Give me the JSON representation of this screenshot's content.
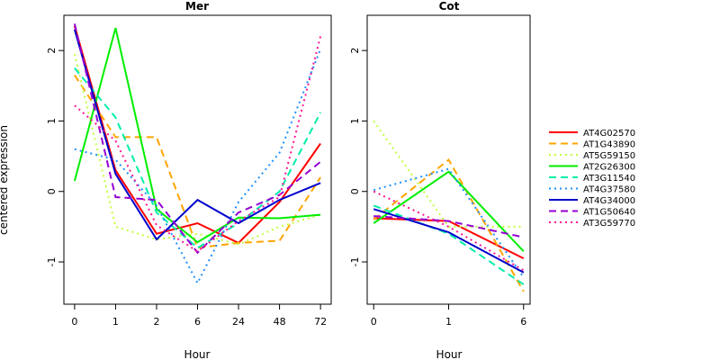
{
  "figure": {
    "ylabel": "centered expression",
    "legend_position": "right"
  },
  "chart_data": [
    {
      "type": "line",
      "title": "Mer",
      "xlabel": "Hour",
      "ylabel": "centered expression",
      "categories": [
        "0",
        "1",
        "2",
        "6",
        "24",
        "48",
        "72"
      ],
      "ylim": [
        -1.6,
        2.5
      ],
      "yticks": [
        -1,
        0,
        1,
        2
      ],
      "grid": false,
      "series": [
        {
          "name": "AT4G02570",
          "color": "#ff0000",
          "dash": "solid",
          "values": [
            2.35,
            0.3,
            -0.6,
            -0.45,
            -0.73,
            -0.15,
            0.68
          ]
        },
        {
          "name": "AT1G43890",
          "color": "#ffa500",
          "dash": "dashed",
          "values": [
            1.65,
            0.77,
            0.77,
            -0.8,
            -0.73,
            -0.7,
            0.2
          ]
        },
        {
          "name": "AT5G59150",
          "color": "#c0ff3e",
          "dash": "dotted",
          "values": [
            1.95,
            -0.5,
            -0.68,
            -0.6,
            -0.75,
            -0.5,
            -0.33
          ]
        },
        {
          "name": "AT2G26300",
          "color": "#00ee00",
          "dash": "solid",
          "values": [
            0.15,
            2.32,
            -0.25,
            -0.72,
            -0.37,
            -0.38,
            -0.33
          ]
        },
        {
          "name": "AT3G11540",
          "color": "#00eeaa",
          "dash": "dashed",
          "values": [
            1.75,
            1.05,
            -0.3,
            -0.8,
            -0.45,
            0.0,
            1.12
          ]
        },
        {
          "name": "AT4G37580",
          "color": "#1e90ff",
          "dash": "dotted",
          "values": [
            0.6,
            0.45,
            -0.2,
            -1.3,
            -0.15,
            0.55,
            2.02
          ]
        },
        {
          "name": "AT4G34000",
          "color": "#0000cd",
          "dash": "solid",
          "values": [
            2.3,
            0.25,
            -0.68,
            -0.12,
            -0.45,
            -0.12,
            0.12
          ]
        },
        {
          "name": "AT1G50640",
          "color": "#9400d3",
          "dash": "dashed",
          "values": [
            2.38,
            -0.08,
            -0.12,
            -0.87,
            -0.3,
            -0.05,
            0.42
          ]
        },
        {
          "name": "AT3G59770",
          "color": "#ff1493",
          "dash": "dotted",
          "values": [
            1.22,
            0.72,
            -0.48,
            -0.85,
            -0.42,
            -0.08,
            2.2
          ]
        }
      ]
    },
    {
      "type": "line",
      "title": "Cot",
      "xlabel": "Hour",
      "ylabel": "",
      "categories": [
        "0",
        "1",
        "6"
      ],
      "ylim": [
        -1.6,
        2.5
      ],
      "yticks": [
        -1,
        0,
        1,
        2
      ],
      "grid": false,
      "series": [
        {
          "name": "AT4G02570",
          "color": "#ff0000",
          "dash": "solid",
          "values": [
            -0.38,
            -0.42,
            -0.95
          ]
        },
        {
          "name": "AT1G43890",
          "color": "#ffa500",
          "dash": "dashed",
          "values": [
            -0.4,
            0.45,
            -1.42
          ]
        },
        {
          "name": "AT5G59150",
          "color": "#c0ff3e",
          "dash": "dotted",
          "values": [
            1.0,
            -0.5,
            -0.5
          ]
        },
        {
          "name": "AT2G26300",
          "color": "#00ee00",
          "dash": "solid",
          "values": [
            -0.45,
            0.28,
            -0.85
          ]
        },
        {
          "name": "AT3G11540",
          "color": "#00eeaa",
          "dash": "dashed",
          "values": [
            -0.2,
            -0.6,
            -1.32
          ]
        },
        {
          "name": "AT4G37580",
          "color": "#1e90ff",
          "dash": "dotted",
          "values": [
            0.02,
            0.32,
            -1.22
          ]
        },
        {
          "name": "AT4G34000",
          "color": "#0000cd",
          "dash": "solid",
          "values": [
            -0.25,
            -0.58,
            -1.15
          ]
        },
        {
          "name": "AT1G50640",
          "color": "#9400d3",
          "dash": "dashed",
          "values": [
            -0.35,
            -0.42,
            -0.65
          ]
        },
        {
          "name": "AT3G59770",
          "color": "#ff1493",
          "dash": "dotted",
          "values": [
            0.0,
            -0.5,
            -1.12
          ]
        }
      ]
    }
  ]
}
